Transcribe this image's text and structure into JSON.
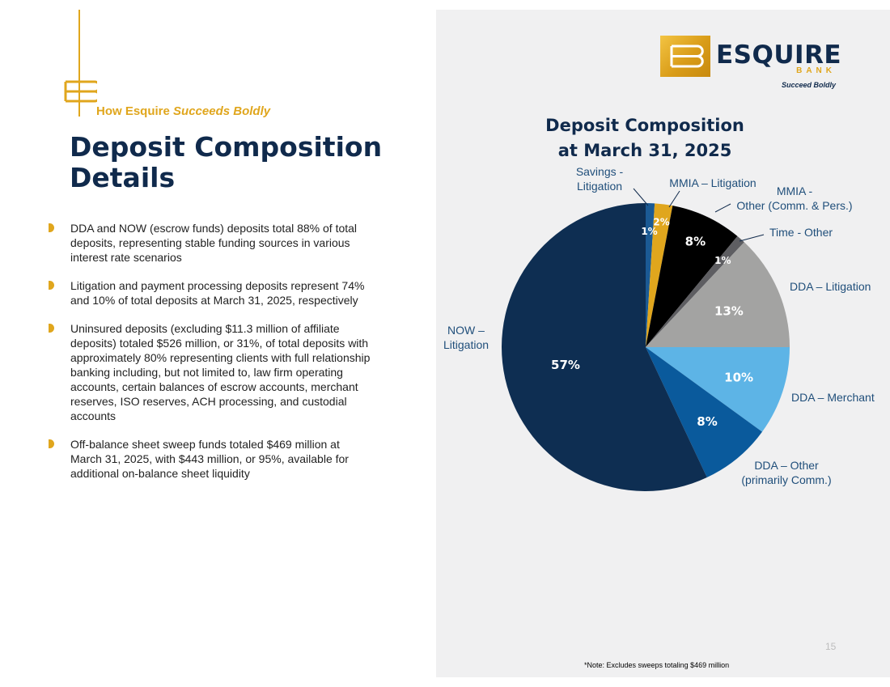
{
  "header": {
    "tagline_prefix": "How Esquire",
    "tagline_emphasis": "Succeeds Boldly",
    "title": "Deposit Composition Details"
  },
  "bullets": [
    "DDA and NOW (escrow funds) deposits total 88% of total deposits, representing stable funding sources in various interest rate scenarios",
    "Litigation and payment processing deposits represent 74% and 10% of total deposits at March 31, 2025, respectively",
    "Uninsured deposits (excluding $11.3 million of affiliate deposits) totaled $526 million, or 31%, of total deposits with approximately 80% representing clients with full relationship banking including, but not limited to, law firm operating accounts, certain balances of escrow accounts, merchant reserves, ISO reserves, ACH processing, and custodial accounts",
    "Off-balance sheet sweep funds totaled $469 million at March 31, 2025, with $443 million, or 95%, available for additional on-balance sheet liquidity"
  ],
  "logo": {
    "name": "ESQUIRE",
    "sub": "BANK",
    "tagline": "Succeed Boldly"
  },
  "chart_data": {
    "type": "pie",
    "title_lines": [
      "Deposit Composition",
      "at March 31, 2025"
    ],
    "slices": [
      {
        "label_lines": [
          "Savings -",
          "Litigation"
        ],
        "value": 1,
        "display": "1%",
        "color": "#1b5a94"
      },
      {
        "label_lines": [
          "MMIA – Litigation"
        ],
        "value": 2,
        "display": "2%",
        "color": "#e0a61d"
      },
      {
        "label_lines": [
          "MMIA -",
          "Other (Comm. & Pers.)"
        ],
        "value": 8,
        "display": "8%",
        "color": "#000000"
      },
      {
        "label_lines": [
          "Time - Other"
        ],
        "value": 1,
        "display": "1%",
        "color": "#5e5e62"
      },
      {
        "label_lines": [
          "DDA – Litigation"
        ],
        "value": 13,
        "display": "13%",
        "color": "#a3a3a2"
      },
      {
        "label_lines": [
          "DDA – Merchant"
        ],
        "value": 10,
        "display": "10%",
        "color": "#5db4e6"
      },
      {
        "label_lines": [
          "DDA – Other",
          "(primarily Comm.)"
        ],
        "value": 8,
        "display": "8%",
        "color": "#0a5a9c"
      },
      {
        "label_lines": [
          "NOW –",
          "Litigation"
        ],
        "value": 57,
        "display": "57%",
        "color": "#0e2e52"
      }
    ]
  },
  "page_number": "15",
  "footnote": "*Note: Excludes sweeps totaling $469 million"
}
